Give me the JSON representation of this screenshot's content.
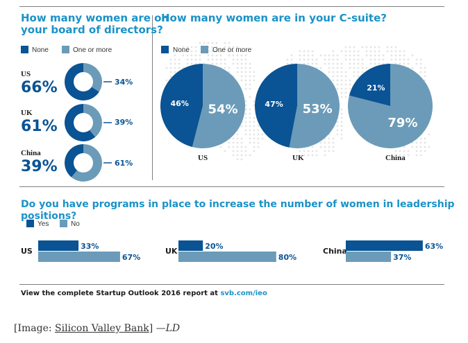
{
  "colors": {
    "none": "#0a5394",
    "one_or_more": "#6b9bb8",
    "heading": "#1a92c8"
  },
  "board": {
    "question_line1": "How many women are on",
    "question_line2": "your board of directors?",
    "legend": [
      "None",
      "One or more"
    ]
  },
  "csuite": {
    "question": "How many women are in your C-suite?",
    "legend": [
      "None",
      "One or more"
    ]
  },
  "programs": {
    "question": "Do you have programs in place to increase the number of women in leadership positions?",
    "legend": [
      "Yes",
      "No"
    ]
  },
  "footer": {
    "text": "View the complete Startup Outlook 2016 report at ",
    "link": "svb.com/ieo"
  },
  "caption": {
    "prefix": "[Image: ",
    "source": "Silicon Valley Bank",
    "suffix": "] ",
    "signature": "—LD"
  },
  "chart_data": [
    {
      "type": "pie",
      "title": "How many women are on your board of directors?",
      "legend": [
        "None",
        "One or more"
      ],
      "categories": [
        "US",
        "UK",
        "China"
      ],
      "series": [
        {
          "name": "None",
          "values": [
            66,
            61,
            39
          ]
        },
        {
          "name": "One or more",
          "values": [
            34,
            39,
            61
          ]
        }
      ],
      "labels_none": [
        "66%",
        "61%",
        "39%"
      ],
      "labels_one": [
        "34%",
        "39%",
        "61%"
      ]
    },
    {
      "type": "pie",
      "title": "How many women are in your C-suite?",
      "legend": [
        "None",
        "One or more"
      ],
      "categories": [
        "US",
        "UK",
        "China"
      ],
      "series": [
        {
          "name": "None",
          "values": [
            46,
            47,
            21
          ]
        },
        {
          "name": "One or more",
          "values": [
            54,
            53,
            79
          ]
        }
      ],
      "labels_none": [
        "46%",
        "47%",
        "21%"
      ],
      "labels_one": [
        "54%",
        "53%",
        "79%"
      ]
    },
    {
      "type": "bar",
      "title": "Do you have programs in place to increase the number of women in leadership positions?",
      "legend": [
        "Yes",
        "No"
      ],
      "categories": [
        "US",
        "UK",
        "China"
      ],
      "series": [
        {
          "name": "Yes",
          "values": [
            33,
            20,
            63
          ]
        },
        {
          "name": "No",
          "values": [
            67,
            80,
            37
          ]
        }
      ],
      "labels_yes": [
        "33%",
        "20%",
        "63%"
      ],
      "labels_no": [
        "67%",
        "80%",
        "37%"
      ]
    }
  ]
}
